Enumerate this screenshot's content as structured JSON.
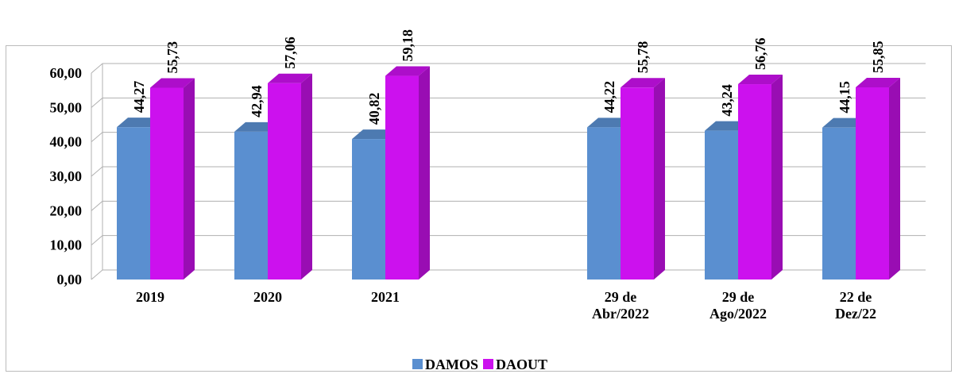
{
  "chart_data": {
    "type": "bar3d",
    "categories": [
      "2019",
      "2020",
      "2021",
      null,
      "29 de Abr/2022",
      "29 de Ago/2022",
      "22 de Dez/22"
    ],
    "series": [
      {
        "name": "DAMOS",
        "color": "#5a8fd0",
        "values": [
          44.27,
          42.94,
          40.82,
          null,
          44.22,
          43.24,
          44.15
        ],
        "value_labels": [
          "44,27",
          "42,94",
          "40,82",
          null,
          "44,22",
          "43,24",
          "44,15"
        ]
      },
      {
        "name": "DAOUT",
        "color": "#cc11ee",
        "values": [
          55.73,
          57.06,
          59.18,
          null,
          55.78,
          56.76,
          55.85
        ],
        "value_labels": [
          "55,73",
          "57,06",
          "59,18",
          null,
          "55,78",
          "56,76",
          "55,85"
        ]
      }
    ],
    "ylim": [
      0,
      60
    ],
    "yticks": [
      {
        "value": 0,
        "label": "0,00"
      },
      {
        "value": 10,
        "label": "10,00"
      },
      {
        "value": 20,
        "label": "20,00"
      },
      {
        "value": 30,
        "label": "30,00"
      },
      {
        "value": 40,
        "label": "40,00"
      },
      {
        "value": 50,
        "label": "50,00"
      },
      {
        "value": 60,
        "label": "60,00"
      }
    ],
    "grid": true,
    "legend": "bottom"
  }
}
